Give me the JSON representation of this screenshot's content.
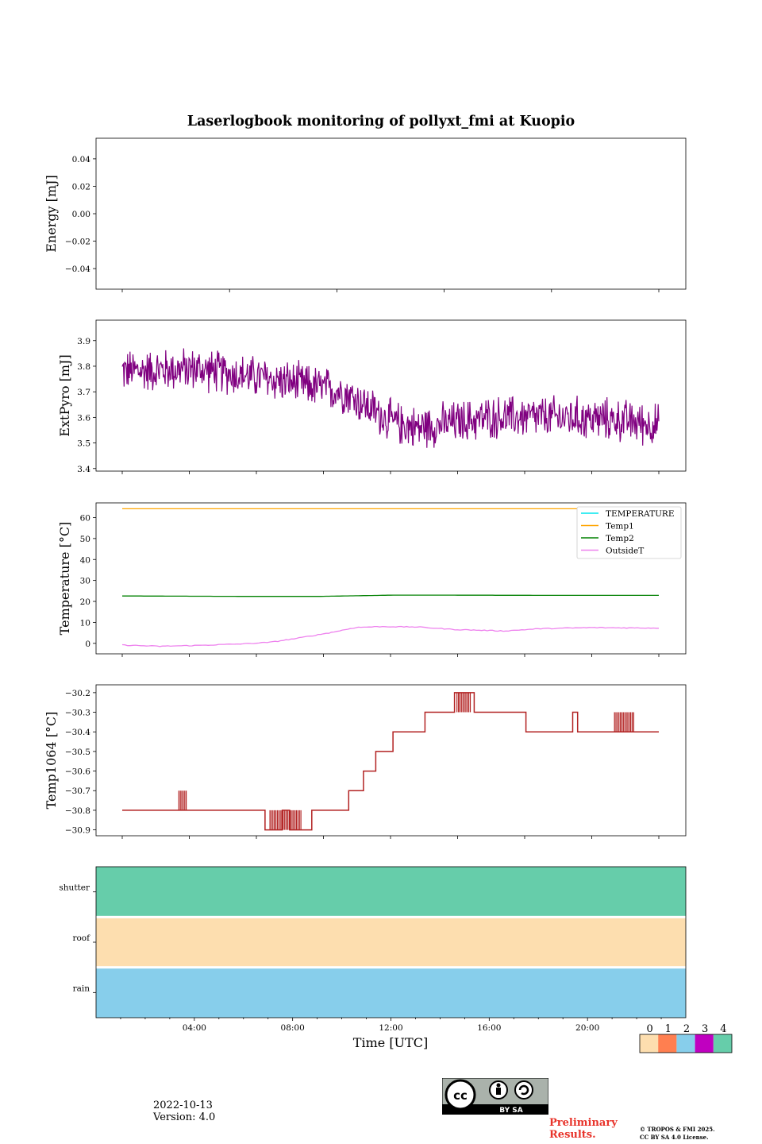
{
  "figure_title": "Laserlogbook monitoring of pollyxt_fmi at Kuopio",
  "footer": {
    "date": "2022-10-13",
    "version": "Version: 4.0",
    "preliminary": "Preliminary Results.",
    "copyright_line1": "© TROPOS & FMI 2025.",
    "copyright_line2": "CC BY SA 4.0 License.",
    "license_badge_text": "BY  SA",
    "license_badge_cc": "cc"
  },
  "colors": {
    "extpyro": "#800080",
    "temperature": "#00e5ee",
    "temp1": "#ffa500",
    "temp2": "#008000",
    "outsideT": "#ee82ee",
    "temp1064": "#b22222",
    "state0": "#fddeaf",
    "state1": "#ff7f50",
    "state2": "#87ceeb",
    "state3": "#c000c0",
    "state4": "#66cdaa"
  },
  "chart_data": [
    {
      "id": "energy",
      "type": "line",
      "title": "",
      "xlabel": "",
      "ylabel": "Energy [mJ]",
      "ylim": [
        -0.055,
        0.055
      ],
      "yticks": [
        0.04,
        0.02,
        0.0,
        -0.02,
        -0.04
      ],
      "ytick_labels": [
        "0.04",
        "0.02",
        "0.00",
        "−0.02",
        "−0.04"
      ],
      "series": []
    },
    {
      "id": "extpyro",
      "type": "line",
      "ylabel": "ExtPyro [mJ]",
      "ylim": [
        3.39,
        3.98
      ],
      "yticks": [
        3.9,
        3.8,
        3.7,
        3.6,
        3.5,
        3.4
      ],
      "ytick_labels": [
        "3.9",
        "3.8",
        "3.7",
        "3.6",
        "3.5",
        "3.4"
      ],
      "series": [
        {
          "name": "ExtPyro",
          "x_hours": [
            1.0,
            4.0,
            7.0,
            10.0,
            11.0,
            12.0,
            13.0,
            16.0,
            19.0,
            21.0,
            22.8
          ],
          "mean": [
            3.78,
            3.79,
            3.75,
            3.7,
            3.64,
            3.58,
            3.56,
            3.6,
            3.6,
            3.59,
            3.57
          ],
          "noise_amplitude": 0.07
        }
      ]
    },
    {
      "id": "temperature",
      "type": "line",
      "ylabel": "Temperature [°C]",
      "ylim": [
        -5,
        67
      ],
      "yticks": [
        60,
        50,
        40,
        30,
        20,
        10,
        0
      ],
      "ytick_labels": [
        "60",
        "50",
        "40",
        "30",
        "20",
        "10",
        "0"
      ],
      "legend_location": "top-right",
      "series": [
        {
          "name": "TEMPERATURE",
          "x_hours": [],
          "values": []
        },
        {
          "name": "Temp1",
          "x_hours": [
            1.0,
            22.8
          ],
          "values": [
            64.2,
            64.2
          ]
        },
        {
          "name": "Temp2",
          "x_hours": [
            1.0,
            6.0,
            9.0,
            12.0,
            14.0,
            18.0,
            22.8
          ],
          "values": [
            22.6,
            22.4,
            22.4,
            23.0,
            23.0,
            22.9,
            22.9
          ]
        },
        {
          "name": "OutsideT",
          "x_hours": [
            1.0,
            2.5,
            4.0,
            6.0,
            7.0,
            8.0,
            9.5,
            10.5,
            11.5,
            13.0,
            14.5,
            16.5,
            18.0,
            20.0,
            22.8
          ],
          "values": [
            -0.8,
            -1.4,
            -1.0,
            -0.2,
            0.5,
            2.2,
            5.2,
            7.6,
            8.0,
            7.8,
            6.6,
            5.9,
            7.0,
            7.5,
            7.3
          ]
        }
      ]
    },
    {
      "id": "temp1064",
      "type": "line",
      "ylabel": "Temp1064 [°C]",
      "ylim": [
        -30.93,
        -30.16
      ],
      "yticks": [
        -30.2,
        -30.3,
        -30.4,
        -30.5,
        -30.6,
        -30.7,
        -30.8,
        -30.9
      ],
      "ytick_labels": [
        "−30.2",
        "−30.3",
        "−30.4",
        "−30.5",
        "−30.6",
        "−30.7",
        "−30.8",
        "−30.9"
      ],
      "series": [
        {
          "name": "Temp1064",
          "x_hours": [
            1.0,
            3.2,
            6.5,
            6.8,
            7.5,
            7.8,
            8.7,
            9.3,
            10.2,
            10.8,
            11.3,
            12.0,
            13.3,
            14.5,
            15.3,
            17.2,
            17.4,
            19.3,
            19.5,
            22.8
          ],
          "values": [
            -30.8,
            -30.8,
            -30.8,
            -30.9,
            -30.8,
            -30.9,
            -30.8,
            -30.8,
            -30.7,
            -30.6,
            -30.5,
            -30.4,
            -30.3,
            -30.2,
            -30.3,
            -30.3,
            -30.4,
            -30.3,
            -30.4,
            -30.4
          ]
        }
      ]
    },
    {
      "id": "status",
      "type": "heatmap",
      "xlabel": "Time [UTC]",
      "rows": [
        "shutter",
        "roof",
        "rain"
      ],
      "row_values": [
        4,
        0,
        2
      ],
      "xticks_hours": [
        4,
        8,
        12,
        16,
        20
      ],
      "xtick_labels": [
        "04:00",
        "08:00",
        "12:00",
        "16:00",
        "20:00"
      ],
      "colorbar_ticks": [
        "0",
        "1",
        "2",
        "3",
        "4"
      ]
    }
  ],
  "x_range_hours": [
    0,
    24
  ]
}
